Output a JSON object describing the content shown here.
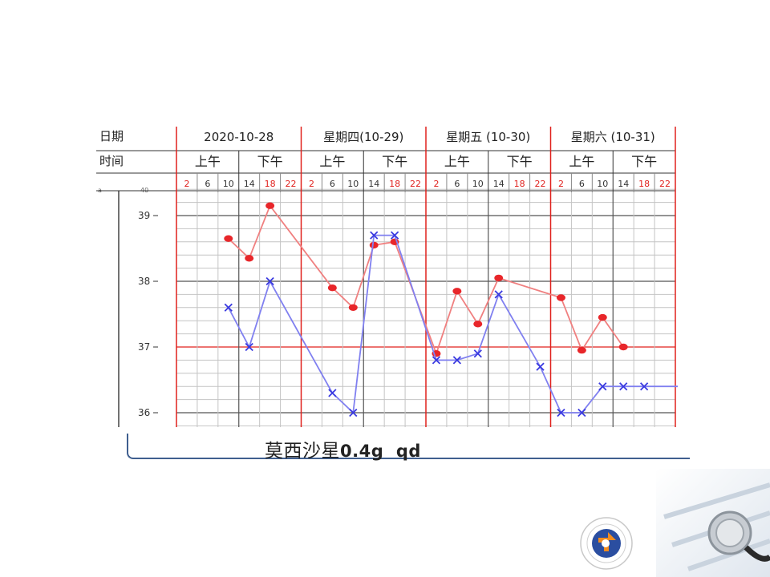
{
  "header": {
    "date_label": "日期",
    "time_label": "时间",
    "days": [
      {
        "label": "2020-10-28",
        "am": "上午",
        "pm": "下午"
      },
      {
        "label": "星期四(10-29)",
        "am": "上午",
        "pm": "下午"
      },
      {
        "label": "星期五 (10-30)",
        "am": "上午",
        "pm": "下午"
      },
      {
        "label": "星期六 (10-31)",
        "am": "上午",
        "pm": "下午"
      }
    ],
    "hours": [
      "2",
      "6",
      "10",
      "14",
      "18",
      "22"
    ],
    "hour_colors": [
      "red",
      "dark",
      "dark",
      "dark",
      "red",
      "red"
    ]
  },
  "chart_data": {
    "type": "line",
    "x": [
      "10-28 2",
      "10-28 6",
      "10-28 10",
      "10-28 14",
      "10-28 18",
      "10-28 22",
      "10-29 2",
      "10-29 6",
      "10-29 10",
      "10-29 14",
      "10-29 18",
      "10-29 22",
      "10-30 2",
      "10-30 6",
      "10-30 10",
      "10-30 14",
      "10-30 18",
      "10-30 22",
      "10-31 2",
      "10-31 6",
      "10-31 10",
      "10-31 14",
      "10-31 18",
      "10-31 22"
    ],
    "series": [
      {
        "marker": "dot",
        "color": "#e8262a",
        "line_color": "#f08080",
        "values": [
          null,
          null,
          38.65,
          38.35,
          39.15,
          null,
          null,
          37.9,
          37.6,
          38.55,
          38.6,
          null,
          36.9,
          37.85,
          37.35,
          38.05,
          null,
          null,
          37.75,
          36.95,
          37.45,
          37.0,
          null,
          null
        ]
      },
      {
        "marker": "x",
        "color": "#3a3ae0",
        "line_color": "#8080f0",
        "values": [
          null,
          null,
          37.6,
          37.0,
          38.0,
          null,
          null,
          36.3,
          36.0,
          38.7,
          38.7,
          null,
          36.8,
          36.8,
          36.9,
          37.8,
          null,
          36.7,
          36.0,
          36.0,
          36.4,
          36.4,
          36.4,
          null
        ]
      }
    ],
    "y_ticks": [
      "36",
      "37",
      "38",
      "39"
    ],
    "ylim": [
      35.8,
      39.4
    ],
    "grid": true
  },
  "note": {
    "drug": "莫西沙星",
    "dose": "0.4g",
    "freq": "qd"
  }
}
